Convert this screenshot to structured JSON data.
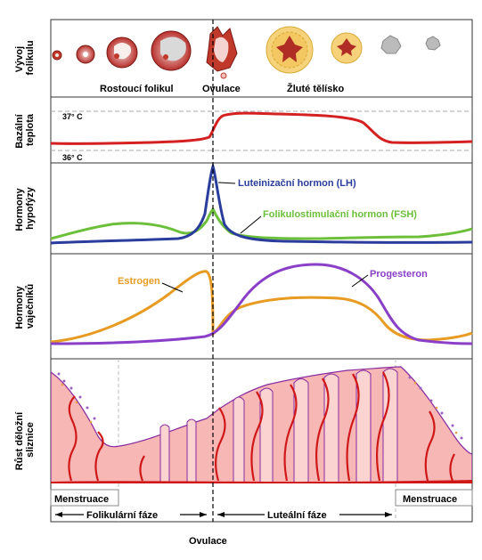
{
  "panels": {
    "follicle": "Vývoj folikulu",
    "temperature": "Bazální teplota",
    "pituitary": "Hormony hypofýzy",
    "ovarian": "Hormony vaječníků",
    "endometrium": "Růst děložní sliznice"
  },
  "follicle_labels": {
    "growing": "Rostoucí folikul",
    "ovulation": "Ovulace",
    "corpus_luteum": "Žluté tělísko"
  },
  "temperature_ticks": {
    "high": "37° C",
    "low": "36° C"
  },
  "hormone_labels": {
    "lh": "Luteinizační hormon (LH)",
    "fsh": "Folikulostimulační hormon (FSH)",
    "estrogen": "Estrogen",
    "progesteron": "Progesteron"
  },
  "phases": {
    "menstruation_start": "Menstruace",
    "menstruation_end": "Menstruace",
    "follicular": "Folikulární fáze",
    "luteal": "Luteální fáze"
  },
  "ovulation_bottom": "Ovulace",
  "colors": {
    "temperature": "#d42020",
    "lh": "#2a3d9c",
    "fsh": "#6cbf3a",
    "estrogen": "#e89b22",
    "progesteron": "#8a3fc8",
    "endometrium_fill": "#f7b7b4",
    "vessel": "#d01818",
    "gland_outline": "#8a2aa0"
  },
  "icons": [
    "follicle-icon",
    "corpus-luteum-icon"
  ]
}
